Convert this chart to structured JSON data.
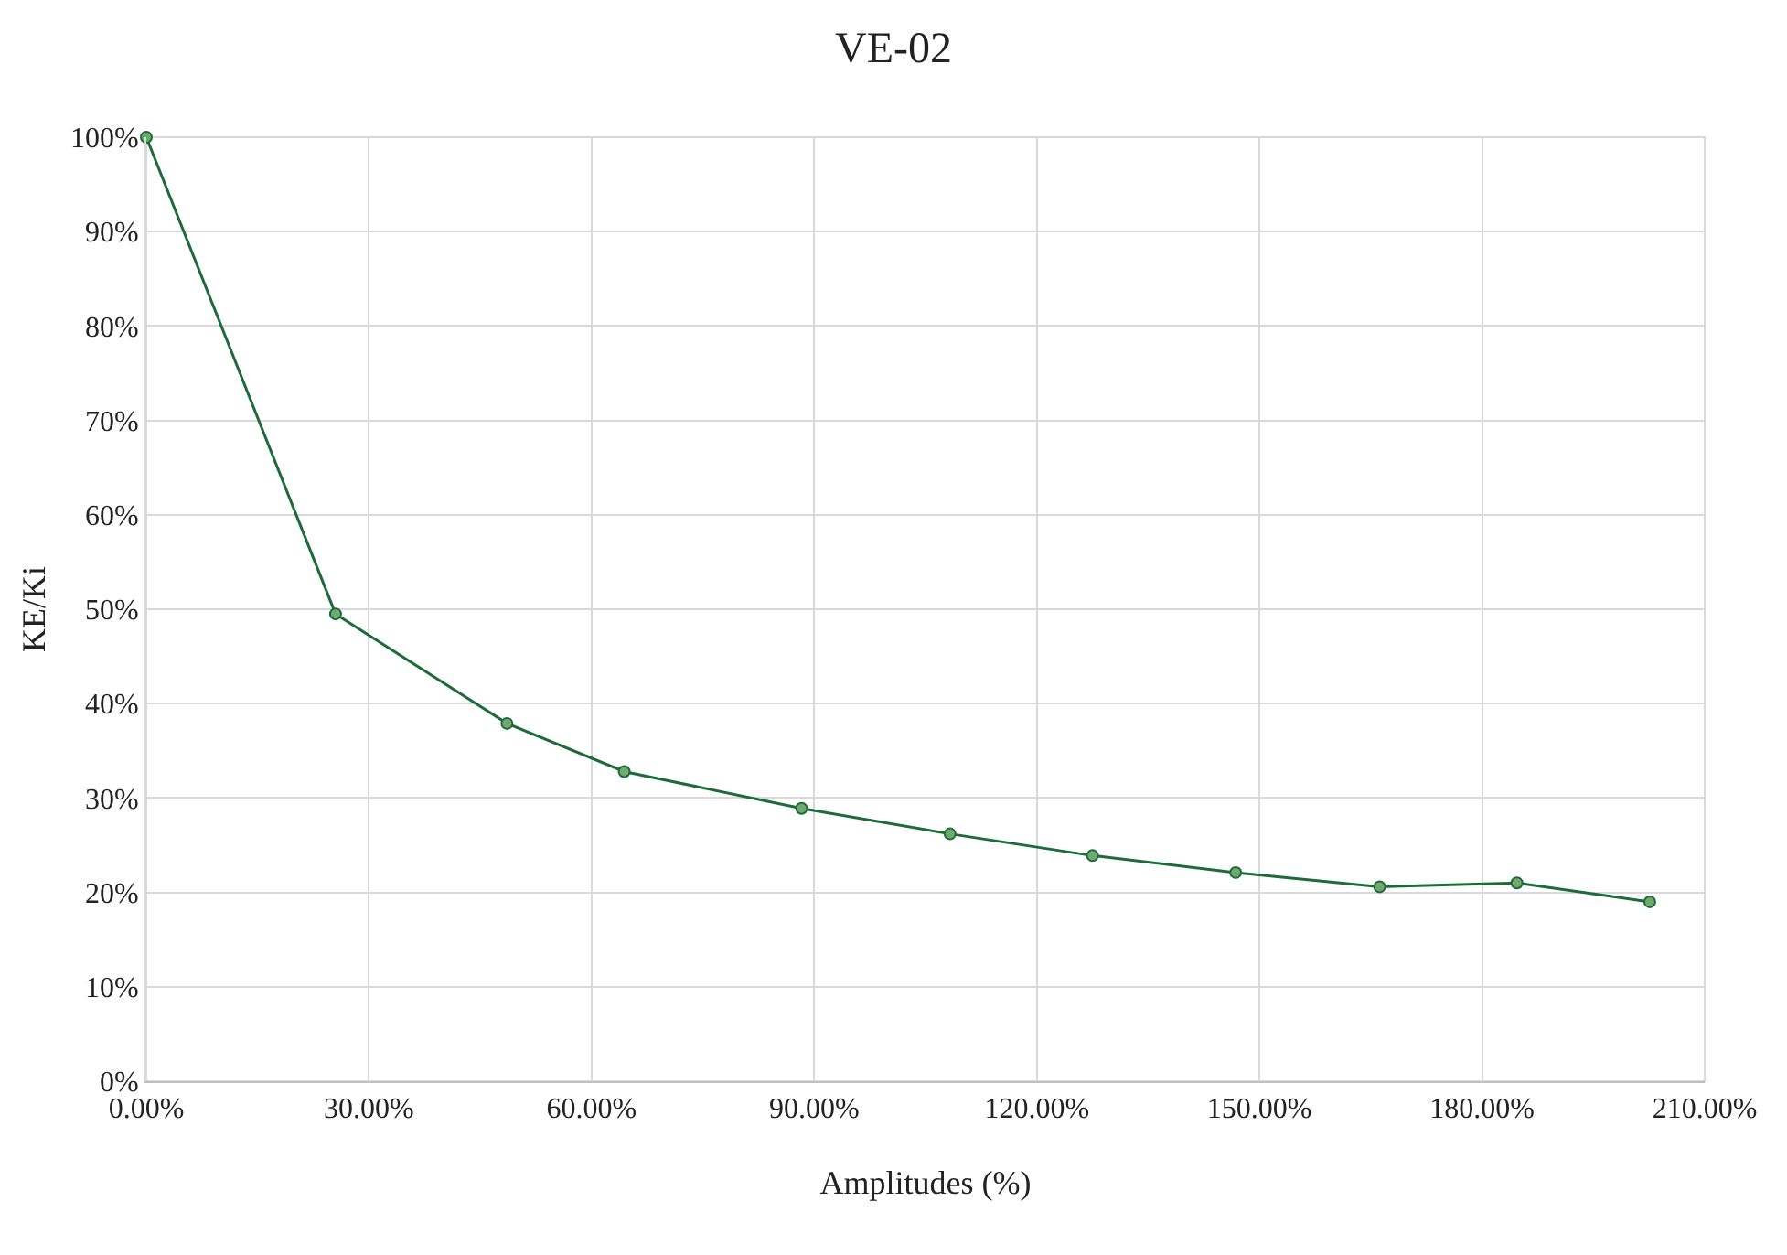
{
  "chart_data": {
    "type": "line",
    "title": "VE-02",
    "xlabel": "Amplitudes (%)",
    "ylabel": "KE/Ki",
    "x": [
      0,
      25.5,
      48.6,
      64.4,
      88.3,
      108.3,
      127.5,
      146.8,
      166.2,
      184.7,
      202.6
    ],
    "series": [
      {
        "color": "#1e6b3a",
        "values": [
          100,
          49.5,
          37.9,
          32.8,
          28.9,
          26.2,
          23.9,
          22.1,
          20.6,
          21.0,
          19.0
        ]
      }
    ],
    "xlim": [
      0,
      210
    ],
    "xticks": [
      {
        "value": 0,
        "label": "0.00%"
      },
      {
        "value": 30,
        "label": "30.00%"
      },
      {
        "value": 60,
        "label": "60.00%"
      },
      {
        "value": 90,
        "label": "90.00%"
      },
      {
        "value": 120,
        "label": "120.00%"
      },
      {
        "value": 150,
        "label": "150.00%"
      },
      {
        "value": 180,
        "label": "180.00%"
      },
      {
        "value": 210,
        "label": "210.00%"
      }
    ],
    "ylim": [
      0,
      100
    ],
    "yticks": [
      {
        "value": 0,
        "label": "0%"
      },
      {
        "value": 10,
        "label": "10%"
      },
      {
        "value": 20,
        "label": "20%"
      },
      {
        "value": 30,
        "label": "30%"
      },
      {
        "value": 40,
        "label": "40%"
      },
      {
        "value": 50,
        "label": "50%"
      },
      {
        "value": 60,
        "label": "60%"
      },
      {
        "value": 70,
        "label": "70%"
      },
      {
        "value": 80,
        "label": "80%"
      },
      {
        "value": 90,
        "label": "90%"
      },
      {
        "value": 100,
        "label": "100%"
      }
    ],
    "grid": true,
    "marker": "circle",
    "line_style": "solid"
  }
}
